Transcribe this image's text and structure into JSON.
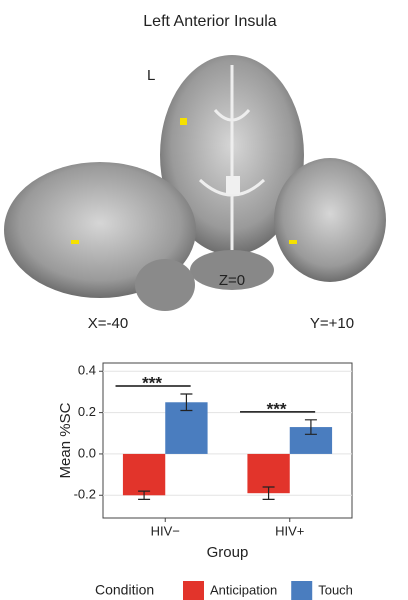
{
  "brain_panel": {
    "title": "Left Anterior Insula",
    "labels": [
      "L",
      "Z=0",
      "X=-40",
      "Y=+10"
    ]
  },
  "chart_data": {
    "type": "bar",
    "x_label": "Group",
    "y_label": "Mean %SC",
    "categories": [
      "HIV−",
      "HIV+"
    ],
    "series": [
      {
        "name": "Anticipation",
        "color": "#e2342b",
        "values": [
          -0.2,
          -0.19
        ],
        "errors": [
          0.02,
          0.03
        ]
      },
      {
        "name": "Touch",
        "color": "#4a7dbf",
        "values": [
          0.25,
          0.13
        ],
        "errors": [
          0.04,
          0.035
        ]
      }
    ],
    "significance": [
      "***",
      "***"
    ],
    "ylim": [
      -0.31,
      0.44
    ],
    "yticks": [
      -0.2,
      {
        "value": 0,
        "label": "0.0"
      },
      0.2,
      0.4
    ],
    "grid": true,
    "legend_title": "Condition",
    "legend_position": "bottom"
  }
}
